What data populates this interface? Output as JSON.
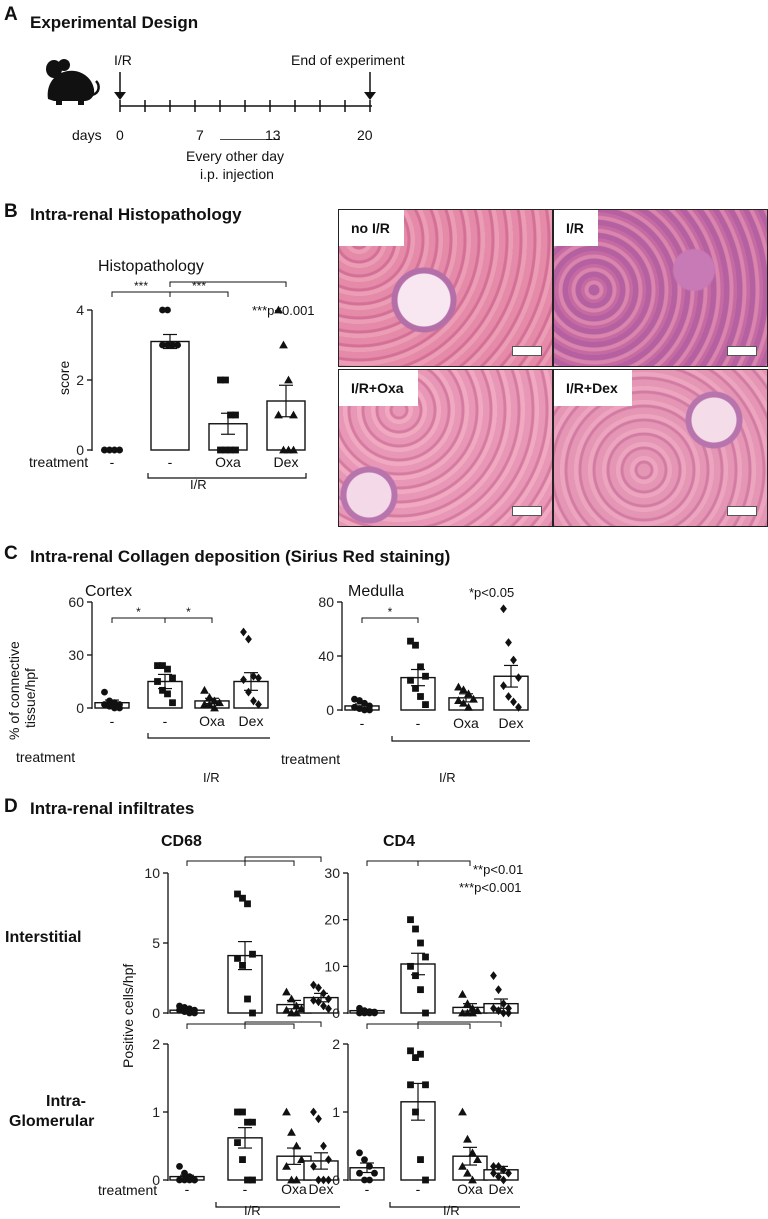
{
  "panel_a": {
    "letter": "A",
    "title": "Experimental Design",
    "ir_label": "I/R",
    "end_label": "End of experiment",
    "days_label": "days",
    "day_ticks": [
      "0",
      "7",
      "13",
      "20"
    ],
    "injection_label_1": "Every other day",
    "injection_label_2": "i.p. injection",
    "mouse_icon": "mouse-icon"
  },
  "panel_b": {
    "letter": "B",
    "title": "Intra-renal Histopathology",
    "plot_title": "Histopathology",
    "ylabel": "score",
    "pnote": "***p<0.001",
    "treatment_label": "treatment",
    "group_label": "I/R",
    "categories": [
      "-",
      "-",
      "Oxa",
      "Dex"
    ],
    "images": [
      {
        "label": "no I/R"
      },
      {
        "label": "I/R"
      },
      {
        "label": "I/R+Oxa"
      },
      {
        "label": "I/R+Dex"
      }
    ]
  },
  "panel_c": {
    "letter": "C",
    "title": "Intra-renal Collagen deposition (Sirius Red staining)",
    "ylabel_1": "% of connective",
    "ylabel_2": "tissue/hpf",
    "pnote": "*p<0.05",
    "treatment_label": "treatment",
    "group_label": "I/R",
    "categories": [
      "-",
      "-",
      "Oxa",
      "Dex"
    ]
  },
  "panel_d": {
    "letter": "D",
    "title": "Intra-renal infiltrates",
    "col1": "CD68",
    "col2": "CD4",
    "row1": "Interstitial",
    "row2_1": "Intra-",
    "row2_2": "Glomerular",
    "ylabel": "Positive cells/hpf",
    "pnote_1": "**p<0.01",
    "pnote_2": "***p<0.001",
    "treatment_label": "treatment",
    "group_label": "I/R",
    "categories": [
      "-",
      "-",
      "Oxa",
      "Dex"
    ]
  },
  "chart_data": [
    {
      "id": "histopathology",
      "type": "bar",
      "title": "Histopathology",
      "ylabel": "score",
      "categories": [
        "-",
        "-",
        "Oxa",
        "Dex"
      ],
      "values": [
        0,
        3.1,
        0.75,
        1.4
      ],
      "sem": [
        0,
        0.2,
        0.3,
        0.45
      ],
      "ylim": [
        0,
        4
      ],
      "yticks": [
        0,
        2,
        4
      ],
      "markers": [
        "circle",
        "circle",
        "square",
        "triangle"
      ],
      "points": [
        [
          0,
          0,
          0,
          0,
          0,
          0,
          0,
          0
        ],
        [
          4,
          4,
          3,
          3,
          3,
          3,
          3,
          3
        ],
        [
          2,
          2,
          1,
          1,
          0,
          0,
          0,
          0
        ],
        [
          4,
          3,
          2,
          1,
          1,
          0,
          0,
          0
        ]
      ],
      "sig": [
        {
          "from": 0,
          "to": 1,
          "label": "***"
        },
        {
          "from": 1,
          "to": 2,
          "label": "***"
        },
        {
          "from": 1,
          "to": 3,
          "label": "***"
        }
      ]
    },
    {
      "id": "cortex",
      "type": "bar",
      "title": "Cortex",
      "ylabel": "% of connective tissue/hpf",
      "categories": [
        "-",
        "-",
        "Oxa",
        "Dex"
      ],
      "values": [
        3,
        15,
        4,
        15
      ],
      "sem": [
        1.5,
        4,
        1.5,
        5
      ],
      "ylim": [
        0,
        60
      ],
      "yticks": [
        0,
        30,
        60
      ],
      "markers": [
        "circle",
        "square",
        "triangle",
        "diamond"
      ],
      "points": [
        [
          9,
          4,
          3,
          2,
          2,
          1,
          0,
          0
        ],
        [
          24,
          24,
          22,
          17,
          15,
          10,
          8,
          3
        ],
        [
          10,
          6,
          4,
          3,
          2,
          2,
          0
        ],
        [
          43,
          39,
          18,
          17,
          16,
          9,
          4,
          2
        ]
      ],
      "sig": [
        {
          "from": 0,
          "to": 1,
          "label": "*"
        },
        {
          "from": 1,
          "to": 2,
          "label": "*"
        }
      ]
    },
    {
      "id": "medulla",
      "type": "bar",
      "title": "Medulla",
      "categories": [
        "-",
        "-",
        "Oxa",
        "Dex"
      ],
      "values": [
        3,
        24,
        9,
        25
      ],
      "sem": [
        1.5,
        6,
        3,
        8
      ],
      "ylim": [
        0,
        80
      ],
      "yticks": [
        0,
        40,
        80
      ],
      "markers": [
        "circle",
        "square",
        "triangle",
        "diamond"
      ],
      "points": [
        [
          8,
          7,
          5,
          3,
          2,
          1,
          0,
          0
        ],
        [
          51,
          48,
          32,
          25,
          22,
          16,
          10,
          4
        ],
        [
          17,
          15,
          12,
          8,
          7,
          5,
          2
        ],
        [
          75,
          50,
          37,
          24,
          18,
          10,
          6,
          2
        ]
      ],
      "sig": [
        {
          "from": 0,
          "to": 1,
          "label": "*"
        }
      ]
    },
    {
      "id": "cd68-interstitial",
      "type": "bar",
      "title": "CD68",
      "categories": [
        "-",
        "-",
        "Oxa",
        "Dex"
      ],
      "values": [
        0.2,
        4.1,
        0.6,
        1.1
      ],
      "sem": [
        0.05,
        1.0,
        0.3,
        0.3
      ],
      "ylim": [
        0,
        10
      ],
      "yticks": [
        0,
        5,
        10
      ],
      "markers": [
        "circle",
        "square",
        "triangle",
        "diamond"
      ],
      "points": [
        [
          0.5,
          0.4,
          0.3,
          0.2,
          0.2,
          0.1,
          0,
          0
        ],
        [
          8.5,
          8.2,
          7.8,
          4.2,
          3.9,
          3.4,
          1.0,
          0
        ],
        [
          1.5,
          1.0,
          0.5,
          0.3,
          0.2,
          0,
          0
        ],
        [
          2.0,
          1.8,
          1.4,
          1.0,
          0.9,
          0.8,
          0.5,
          0.3
        ]
      ],
      "sig": [
        {
          "from": 1,
          "to": 0,
          "label": "***"
        },
        {
          "from": 1,
          "to": 2,
          "label": "***"
        },
        {
          "from": 1,
          "to": 3,
          "label": "**"
        }
      ]
    },
    {
      "id": "cd4-interstitial",
      "type": "bar",
      "title": "CD4",
      "categories": [
        "-",
        "-",
        "Oxa",
        "Dex"
      ],
      "values": [
        0.5,
        10.5,
        1.2,
        2.0
      ],
      "sem": [
        0.2,
        2.3,
        0.8,
        1.0
      ],
      "ylim": [
        0,
        30
      ],
      "yticks": [
        0,
        10,
        20,
        30
      ],
      "markers": [
        "circle",
        "square",
        "triangle",
        "diamond"
      ],
      "points": [
        [
          1,
          0.5,
          0.3,
          0.2,
          0,
          0,
          0,
          0
        ],
        [
          20,
          18,
          15,
          12,
          10,
          8,
          5,
          0
        ],
        [
          4,
          2,
          1,
          0.5,
          0,
          0,
          0
        ],
        [
          8,
          5,
          2,
          1,
          1,
          0.5,
          0,
          0
        ]
      ],
      "sig": [
        {
          "from": 0,
          "to": 1,
          "label": "**"
        },
        {
          "from": 1,
          "to": 2,
          "label": "**"
        }
      ]
    },
    {
      "id": "cd68-glomerular",
      "type": "bar",
      "categories": [
        "-",
        "-",
        "Oxa",
        "Dex"
      ],
      "values": [
        0.05,
        0.62,
        0.35,
        0.28
      ],
      "sem": [
        0.02,
        0.15,
        0.12,
        0.12
      ],
      "ylim": [
        0,
        2
      ],
      "yticks": [
        0,
        1,
        2
      ],
      "markers": [
        "circle",
        "square",
        "triangle",
        "diamond"
      ],
      "points": [
        [
          0.2,
          0.1,
          0.05,
          0,
          0,
          0,
          0,
          0
        ],
        [
          1.0,
          1.0,
          0.85,
          0.85,
          0.55,
          0.3,
          0,
          0
        ],
        [
          1.0,
          0.7,
          0.5,
          0.3,
          0.2,
          0,
          0
        ],
        [
          1.0,
          0.9,
          0.5,
          0.3,
          0.2,
          0,
          0,
          0
        ]
      ],
      "sig": [
        {
          "from": 1,
          "to": 0,
          "label": "***"
        },
        {
          "from": 1,
          "to": 2,
          "label": "***"
        },
        {
          "from": 1,
          "to": 3,
          "label": "**"
        }
      ]
    },
    {
      "id": "cd4-glomerular",
      "type": "bar",
      "categories": [
        "-",
        "-",
        "Oxa",
        "Dex"
      ],
      "values": [
        0.18,
        1.15,
        0.35,
        0.15
      ],
      "sem": [
        0.07,
        0.27,
        0.13,
        0.05
      ],
      "ylim": [
        0,
        2
      ],
      "yticks": [
        0,
        1,
        2
      ],
      "markers": [
        "circle",
        "square",
        "triangle",
        "diamond"
      ],
      "points": [
        [
          0.4,
          0.3,
          0.2,
          0.1,
          0.1,
          0,
          0
        ],
        [
          1.9,
          1.8,
          1.85,
          1.4,
          1.4,
          1.0,
          0.3,
          0
        ],
        [
          1.0,
          0.6,
          0.4,
          0.3,
          0.2,
          0.1,
          0
        ],
        [
          0.2,
          0.2,
          0.15,
          0.1,
          0.1,
          0.05,
          0
        ]
      ],
      "sig": [
        {
          "from": 0,
          "to": 1,
          "label": "***"
        },
        {
          "from": 1,
          "to": 2,
          "label": "**"
        },
        {
          "from": 1,
          "to": 3,
          "label": "***"
        }
      ]
    }
  ]
}
